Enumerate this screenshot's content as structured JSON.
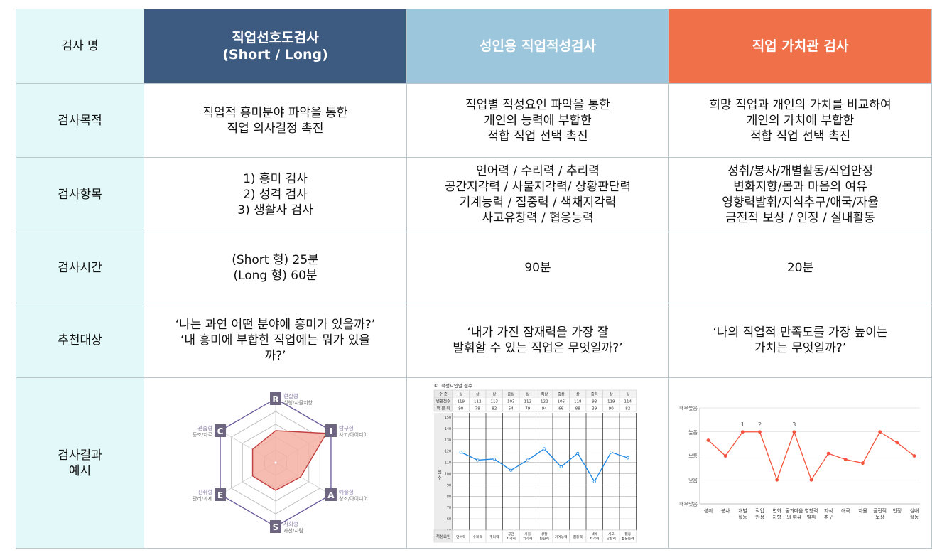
{
  "labels": {
    "name": "검사 명",
    "purpose": "검사목적",
    "items": "검사항목",
    "time": "검사시간",
    "target": "추천대상",
    "example": [
      "검사결과",
      "예시"
    ]
  },
  "columns": [
    {
      "title": [
        "직업선호도검사",
        "(Short / Long)"
      ],
      "color": "#3d5a80"
    },
    {
      "title": [
        "성인용 직업적성검사"
      ],
      "color": "#9cc6dc"
    },
    {
      "title": [
        "직업 가치관 검사"
      ],
      "color": "#f0704a"
    }
  ],
  "rows": {
    "purpose": [
      [
        "직업적 흥미분야 파악을 통한",
        "직업 의사결정 촉진"
      ],
      [
        "직업별 적성요인 파악을 통한",
        "개인의 능력에 부합한",
        "적합 직업 선택 촉진"
      ],
      [
        "희망 직업과 개인의 가치를 비교하여",
        "개인의 가치에 부합한",
        "적합 직업 선택 촉진"
      ]
    ],
    "items": [
      [
        "1)  흥미 검사",
        "2)  성격 검사",
        "3)  생활사 검사"
      ],
      [
        "언어력 / 수리력 / 추리력",
        "공간지각력 / 사물지각력/ 상황판단력",
        "기계능력 / 집중력 / 색채지각력",
        "사고유창력 / 협응능력"
      ],
      [
        "성취/봉사/개별활동/직업안정",
        "변화지향/몸과 마음의 여유",
        "영향력발휘/지식추구/애국/자율",
        "금전적 보상 / 인정 / 실내활동"
      ]
    ],
    "time": [
      [
        "(Short 형) 25분",
        "(Long 형) 60분"
      ],
      [
        "90분"
      ],
      [
        "20분"
      ]
    ],
    "target": [
      [
        "‘나는 과연 어떤 분야에 흥미가 있을까?’",
        "‘내 흥미에 부합한 직업에는 뭐가 있을",
        "까?’"
      ],
      [
        "‘내가 가진 잠재력을 가장 잘",
        "발휘할 수 있는 직업은 무엇일까?’"
      ],
      [
        "‘나의 직업적 만족도를 가장 높이는",
        "가치는 무엇일까?’"
      ]
    ]
  },
  "chart_data": [
    {
      "type": "radar",
      "axes": [
        {
          "letter": "R",
          "name": "현실형",
          "desc": "실행/사물지향",
          "value": 3
        },
        {
          "letter": "I",
          "name": "탐구형",
          "desc": "사고/아이디어",
          "value": 5.5
        },
        {
          "letter": "A",
          "name": "예술형",
          "desc": "창조/아이디어",
          "value": 2.7
        },
        {
          "letter": "S",
          "name": "사회형",
          "desc": "자선/사람",
          "value": 2.6
        },
        {
          "letter": "E",
          "name": "진취형",
          "desc": "관리/과제",
          "value": 2.5
        },
        {
          "letter": "C",
          "name": "관습형",
          "desc": "동조/자료",
          "value": 2.5
        }
      ],
      "rmax": 6,
      "rings": 5
    },
    {
      "type": "line",
      "title": "적성요인별 점수",
      "table_rows": [
        {
          "label": "수 준",
          "values": [
            "상",
            "상",
            "상",
            "중상",
            "상",
            "최상",
            "중상",
            "상",
            "중하",
            "상",
            "상"
          ]
        },
        {
          "label": "변환점수",
          "values": [
            "119",
            "112",
            "113",
            "103",
            "112",
            "122",
            "106",
            "118",
            "93",
            "119",
            "114"
          ]
        },
        {
          "label": "백 분 위",
          "values": [
            "90",
            "78",
            "82",
            "54",
            "79",
            "94",
            "66",
            "88",
            "39",
            "90",
            "82"
          ]
        }
      ],
      "ylabel": "점수",
      "yticks": [
        "150",
        "140",
        "130",
        "120",
        "110",
        "100",
        "90",
        "80",
        "70",
        "60",
        "50"
      ],
      "ylim": [
        50,
        150
      ],
      "x_header": "적성요인",
      "categories": [
        "언어력",
        "수리력",
        "추리력",
        "공간지각력",
        "사물지각력",
        "상황판단력",
        "기계능력",
        "집중력",
        "색채지각력",
        "사고유창력",
        "협응능력"
      ],
      "x_labels": [
        [
          "언어력"
        ],
        [
          "수리력"
        ],
        [
          "추리력"
        ],
        [
          "공간",
          "지각력"
        ],
        [
          "사물",
          "지각력"
        ],
        [
          "상황",
          "판단력"
        ],
        [
          "기계능력"
        ],
        [
          "집중력"
        ],
        [
          "색채",
          "지각력"
        ],
        [
          "사고",
          "유창력"
        ],
        [
          "협응",
          "협응능력"
        ]
      ],
      "values": [
        119,
        112,
        113,
        103,
        112,
        122,
        106,
        118,
        93,
        119,
        114
      ],
      "color": "#1e88e5"
    },
    {
      "type": "line",
      "ylevels": [
        "매우높음",
        "높음",
        "보통",
        "낮음",
        "매우낮음"
      ],
      "ylim": [
        0,
        4
      ],
      "categories": [
        "성취",
        "봉사",
        "개별활동",
        "직업안정",
        "변화지향",
        "몸과마음의 여유",
        "영향력발휘",
        "지식추구",
        "애국",
        "자율",
        "금전적보상",
        "인정",
        "실내활동"
      ],
      "x_labels": [
        [
          "성취"
        ],
        [
          "봉사"
        ],
        [
          "개별",
          "활동"
        ],
        [
          "직업",
          "안정"
        ],
        [
          "변화",
          "지향"
        ],
        [
          "몸과마음",
          "의 여유"
        ],
        [
          "영향력",
          "발휘"
        ],
        [
          "지식",
          "추구"
        ],
        [
          "애국"
        ],
        [
          "자율"
        ],
        [
          "금전적",
          "보상"
        ],
        [
          "인정"
        ],
        [
          "실내",
          "활동"
        ]
      ],
      "values": [
        2.65,
        2,
        3,
        3,
        1,
        3,
        1,
        2.1,
        1.85,
        1.7,
        3,
        2.55,
        2
      ],
      "rank_labels": [
        {
          "index": 2,
          "text": "1"
        },
        {
          "index": 3,
          "text": "2"
        },
        {
          "index": 5,
          "text": "3"
        }
      ],
      "color": "#f5533d"
    }
  ]
}
